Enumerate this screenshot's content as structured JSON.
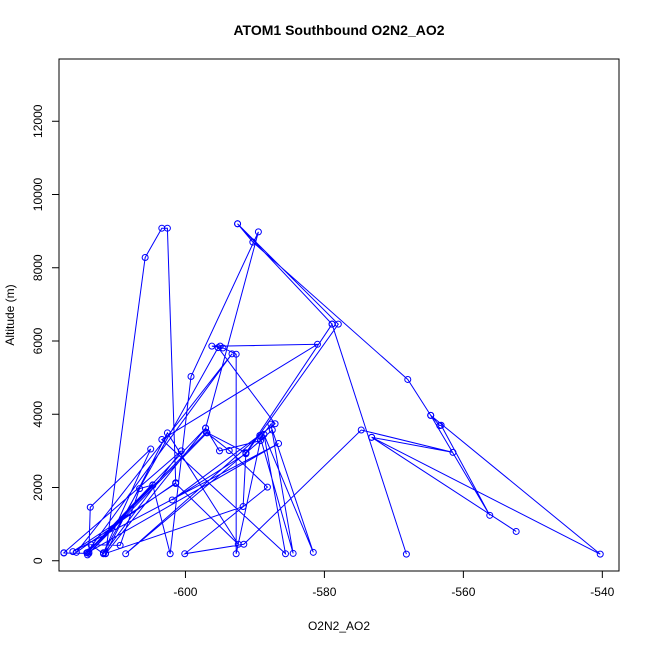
{
  "chart_data": {
    "type": "line",
    "title": "ATOM1 Southbound O2N2_AO2",
    "xlabel": "O2N2_AO2",
    "ylabel": "Altitude (m)",
    "xlim": [
      -618.2,
      -537.6
    ],
    "ylim": [
      -280,
      13700
    ],
    "xticks": [
      -600,
      -580,
      -560,
      -540
    ],
    "yticks": [
      0,
      2000,
      4000,
      6000,
      8000,
      10000,
      12000
    ],
    "x_tick_labels": [
      "-600",
      "-580",
      "-560",
      "-540"
    ],
    "y_tick_labels": [
      "0",
      "2000",
      "4000",
      "6000",
      "8000",
      "10000",
      "12000"
    ],
    "colors": {
      "series": "#0000ff"
    },
    "series": [
      {
        "points": [
          [
            -592.5,
            9200
          ],
          [
            -590.3,
            8700
          ],
          [
            -568,
            4950
          ],
          [
            -564.7,
            3970
          ],
          [
            -563.4,
            3690
          ],
          [
            -563.2,
            3700
          ],
          [
            -556.2,
            1240
          ],
          [
            -564.7,
            3970
          ],
          [
            -540.3,
            180
          ],
          [
            -573.2,
            3370
          ],
          [
            -552.4,
            800
          ],
          [
            -573.2,
            3370
          ],
          [
            -561.5,
            2960
          ],
          [
            -574.7,
            3570
          ],
          [
            -591.6,
            450
          ],
          [
            -600.1,
            190
          ],
          [
            -588.2,
            2010
          ],
          [
            -593.7,
            3010
          ],
          [
            -596.9,
            3490
          ],
          [
            -614.1,
            160
          ],
          [
            -604.7,
            2060
          ],
          [
            -602.2,
            190
          ],
          [
            -599.2,
            5030
          ],
          [
            -589.5,
            8980
          ],
          [
            -597.1,
            3620
          ],
          [
            -614.2,
            220
          ],
          [
            -593.3,
            5650
          ],
          [
            -615.7,
            230
          ],
          [
            -601.4,
            2130
          ],
          [
            -602.6,
            9080
          ],
          [
            -603.4,
            9080
          ],
          [
            -605.8,
            8280
          ],
          [
            -611.5,
            190
          ],
          [
            -597.1,
            3620
          ],
          [
            -595.1,
            3000
          ],
          [
            -589.2,
            3280
          ],
          [
            -608.6,
            190
          ],
          [
            -589.3,
            3420
          ],
          [
            -584.5,
            200
          ],
          [
            -587.7,
            3730
          ],
          [
            -589.1,
            3380
          ],
          [
            -592.7,
            190
          ],
          [
            -592.7,
            5640
          ],
          [
            -594.6,
            5810
          ],
          [
            -596.2,
            5860
          ],
          [
            -595,
            5860
          ],
          [
            -581,
            5910
          ],
          [
            -603.4,
            3310
          ],
          [
            -585.6,
            190
          ],
          [
            -588.7,
            3450
          ],
          [
            -581.6,
            230
          ],
          [
            -587.5,
            3570
          ],
          [
            -591.3,
            2940
          ],
          [
            -578.9,
            6460
          ],
          [
            -568.2,
            180
          ],
          [
            -578.9,
            6460
          ],
          [
            -592.5,
            9200
          ],
          [
            -578,
            6460
          ],
          [
            -591.3,
            2920
          ],
          [
            -601.9,
            1660
          ],
          [
            -587.1,
            3740
          ],
          [
            -595.3,
            5820
          ],
          [
            -611.8,
            220
          ],
          [
            -605,
            3050
          ],
          [
            -613.7,
            1460
          ],
          [
            -613.9,
            240
          ],
          [
            -586.6,
            3200
          ],
          [
            -616.2,
            250
          ],
          [
            -601.4,
            2110
          ],
          [
            -592.4,
            450
          ],
          [
            -602.6,
            3490
          ],
          [
            -611.5,
            200
          ],
          [
            -591.7,
            1480
          ],
          [
            -591.3,
            2950
          ],
          [
            -597,
            3510
          ],
          [
            -614.1,
            220
          ],
          [
            -604.7,
            2070
          ],
          [
            -606.6,
            1970
          ],
          [
            -609.4,
            420
          ],
          [
            -613.6,
            440
          ],
          [
            -611.8,
            190
          ],
          [
            -600.6,
            3000
          ],
          [
            -617.5,
            220
          ],
          [
            -617.5,
            210
          ],
          [
            -613.9,
            200
          ]
        ]
      }
    ]
  }
}
